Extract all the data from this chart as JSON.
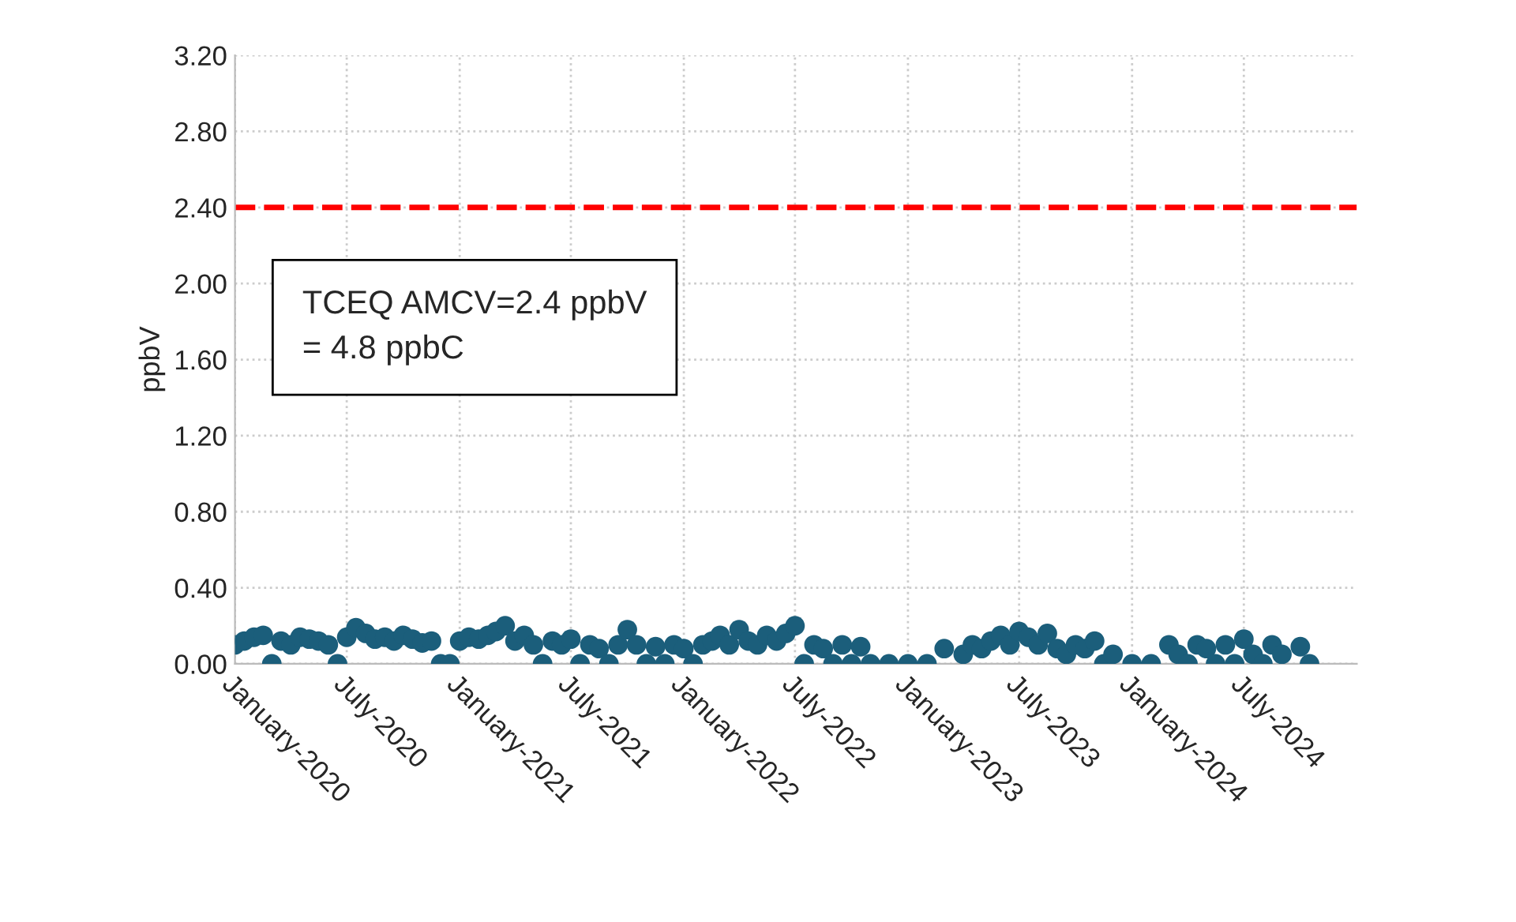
{
  "chart_data": {
    "type": "scatter",
    "ylabel": "ppbV",
    "annotations": [
      "TCEQ AMCV=2.4 ppbV\n= 4.8 ppbC"
    ],
    "x": [
      "2020-01-01",
      "2020-01-16",
      "2020-02-01",
      "2020-02-16",
      "2020-03-01",
      "2020-03-16",
      "2020-04-01",
      "2020-04-16",
      "2020-05-01",
      "2020-05-16",
      "2020-06-01",
      "2020-06-16",
      "2020-07-01",
      "2020-07-16",
      "2020-08-01",
      "2020-08-16",
      "2020-09-01",
      "2020-09-16",
      "2020-10-01",
      "2020-10-16",
      "2020-11-01",
      "2020-11-16",
      "2020-12-01",
      "2020-12-16",
      "2021-01-01",
      "2021-01-16",
      "2021-02-01",
      "2021-02-16",
      "2021-03-01",
      "2021-03-16",
      "2021-04-01",
      "2021-04-16",
      "2021-05-01",
      "2021-05-16",
      "2021-06-01",
      "2021-06-16",
      "2021-07-01",
      "2021-07-16",
      "2021-08-01",
      "2021-08-16",
      "2021-09-01",
      "2021-09-16",
      "2021-10-01",
      "2021-10-16",
      "2021-11-01",
      "2021-11-16",
      "2021-12-01",
      "2021-12-16",
      "2022-01-01",
      "2022-01-16",
      "2022-02-01",
      "2022-02-16",
      "2022-03-01",
      "2022-03-16",
      "2022-04-01",
      "2022-04-16",
      "2022-05-01",
      "2022-05-16",
      "2022-06-01",
      "2022-06-16",
      "2022-07-01",
      "2022-07-16",
      "2022-08-01",
      "2022-08-16",
      "2022-09-01",
      "2022-09-16",
      "2022-10-01",
      "2022-10-16",
      "2022-11-01",
      "2022-12-01",
      "2023-01-01",
      "2023-02-01",
      "2023-03-01",
      "2023-04-01",
      "2023-04-16",
      "2023-05-01",
      "2023-05-16",
      "2023-06-01",
      "2023-06-16",
      "2023-07-01",
      "2023-07-16",
      "2023-08-01",
      "2023-08-16",
      "2023-09-01",
      "2023-09-16",
      "2023-10-01",
      "2023-10-16",
      "2023-11-01",
      "2023-11-16",
      "2023-12-01",
      "2024-01-01",
      "2024-02-01",
      "2024-03-01",
      "2024-03-16",
      "2024-04-01",
      "2024-04-16",
      "2024-05-01",
      "2024-05-16",
      "2024-06-01",
      "2024-06-16",
      "2024-07-01",
      "2024-07-16",
      "2024-08-01",
      "2024-08-16",
      "2024-09-01",
      "2024-10-01",
      "2024-10-16"
    ],
    "series": [
      {
        "color": "#1b5e7b",
        "values": [
          0.1,
          0.12,
          0.14,
          0.15,
          0,
          0.12,
          0.1,
          0.14,
          0.13,
          0.12,
          0.1,
          0,
          0.14,
          0.19,
          0.16,
          0.13,
          0.14,
          0.12,
          0.15,
          0.13,
          0.11,
          0.12,
          0,
          0,
          0.12,
          0.14,
          0.13,
          0.15,
          0.17,
          0.2,
          0.12,
          0.15,
          0.1,
          0,
          0.12,
          0.1,
          0.13,
          0,
          0.1,
          0.08,
          0,
          0.1,
          0.18,
          0.1,
          0,
          0.09,
          0,
          0.1,
          0.08,
          0,
          0.1,
          0.12,
          0.15,
          0.1,
          0.18,
          0.12,
          0.1,
          0.15,
          0.12,
          0.16,
          0.2,
          0,
          0.1,
          0.08,
          0,
          0.1,
          0,
          0.09,
          0,
          0,
          0,
          0,
          0.08,
          0.05,
          0.1,
          0.08,
          0.12,
          0.15,
          0.1,
          0.17,
          0.14,
          0.1,
          0.16,
          0.08,
          0.05,
          0.1,
          0.08,
          0.12,
          0,
          0.05,
          0,
          0,
          0.1,
          0.05,
          0,
          0.1,
          0.08,
          0,
          0.1,
          0,
          0.13,
          0.05,
          0,
          0.1,
          0.05,
          0.09,
          0
        ]
      }
    ],
    "marker": "circle",
    "ref_lines": [
      {
        "axis": "y",
        "value": 2.4,
        "color": "#ff0000",
        "line_style": "dashed"
      }
    ],
    "xlim": [
      "2020-01-01",
      "2025-01-01"
    ],
    "xticks": [
      {
        "value": "2020-01-01",
        "label": "January-2020"
      },
      {
        "value": "2020-07-01",
        "label": "July-2020"
      },
      {
        "value": "2021-01-01",
        "label": "January-2021"
      },
      {
        "value": "2021-07-01",
        "label": "July-2021"
      },
      {
        "value": "2022-01-01",
        "label": "January-2022"
      },
      {
        "value": "2022-07-01",
        "label": "July-2022"
      },
      {
        "value": "2023-01-01",
        "label": "January-2023"
      },
      {
        "value": "2023-07-01",
        "label": "July-2023"
      },
      {
        "value": "2024-01-01",
        "label": "January-2024"
      },
      {
        "value": "2024-07-01",
        "label": "July-2024"
      }
    ],
    "ylim": [
      0,
      3.2
    ],
    "yticks": [
      {
        "value": 0,
        "label": "0.00"
      },
      {
        "value": 0.4,
        "label": "0.40"
      },
      {
        "value": 0.8,
        "label": "0.80"
      },
      {
        "value": 1.2,
        "label": "1.20"
      },
      {
        "value": 1.6,
        "label": "1.60"
      },
      {
        "value": 2.0,
        "label": "2.00"
      },
      {
        "value": 2.4,
        "label": "2.40"
      },
      {
        "value": 2.8,
        "label": "2.80"
      },
      {
        "value": 3.2,
        "label": "3.20"
      }
    ],
    "grid": true,
    "legend": false
  }
}
